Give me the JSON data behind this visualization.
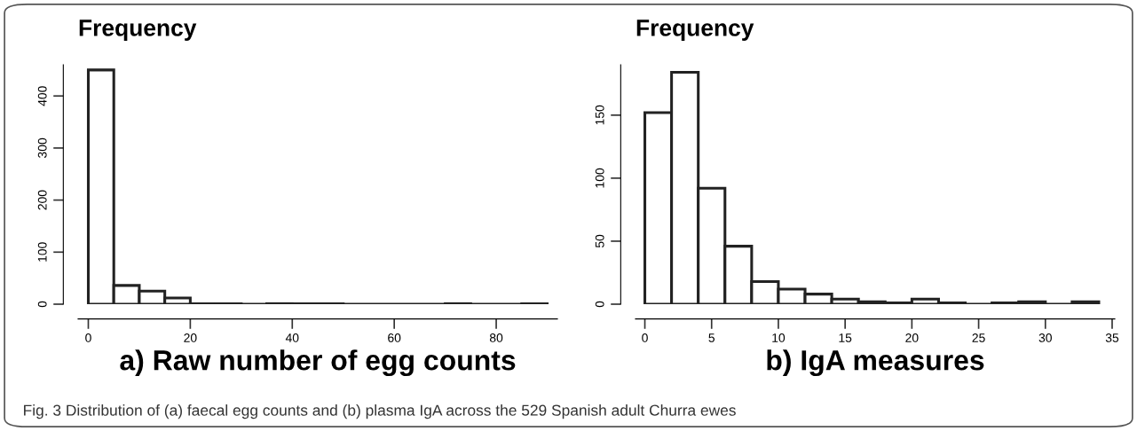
{
  "chart_data": [
    {
      "type": "histogram",
      "ylabel": "Frequency",
      "xlabel": "a) Raw number of egg counts",
      "color": "#ffffff",
      "bins": [
        0,
        5,
        10,
        15,
        20,
        25,
        30,
        35,
        40,
        45,
        50,
        55,
        60,
        65,
        70,
        75,
        80,
        85,
        90
      ],
      "values": [
        450,
        36,
        25,
        12,
        1,
        1,
        0,
        1,
        1,
        1,
        0,
        0,
        0,
        0,
        1,
        0,
        0,
        1
      ],
      "xlim": [
        -2,
        92
      ],
      "xticks": [
        0,
        20,
        40,
        60,
        80
      ],
      "ylim": [
        0,
        460
      ],
      "yticks": [
        0,
        100,
        200,
        300,
        400
      ],
      "grid": false,
      "annotations": [
        "Fig. 3 Distribution of (a) faecal egg counts and (b) plasma IgA across the 529 Spanish adult Churra ewes"
      ]
    },
    {
      "type": "histogram",
      "ylabel": "Frequency",
      "xlabel": "b) IgA measures",
      "color": "#ffffff",
      "bins": [
        0,
        2,
        4,
        6,
        8,
        10,
        12,
        14,
        16,
        18,
        20,
        22,
        24,
        26,
        28,
        30,
        32,
        34
      ],
      "values": [
        152,
        184,
        92,
        46,
        18,
        12,
        8,
        4,
        2,
        1,
        4,
        1,
        0,
        1,
        2,
        0,
        2
      ],
      "xlim": [
        -0.7,
        35.2
      ],
      "xticks": [
        0,
        5,
        10,
        15,
        20,
        25,
        30,
        35
      ],
      "ylim": [
        0,
        190
      ],
      "yticks": [
        0,
        50,
        100,
        150
      ],
      "grid": false
    }
  ]
}
